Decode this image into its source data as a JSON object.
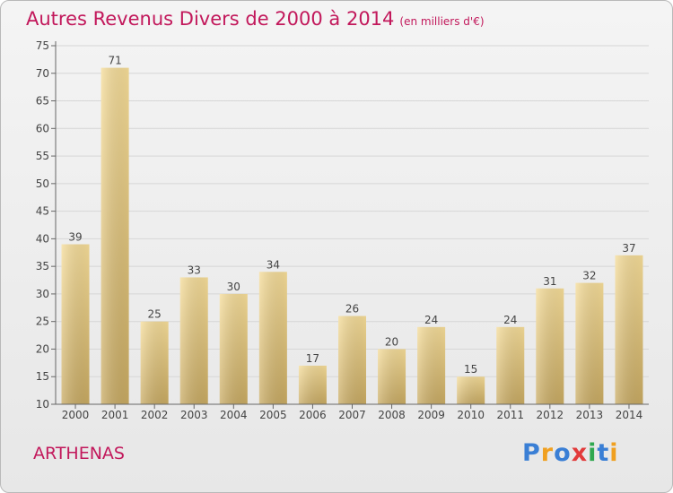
{
  "title": "Autres Revenus Divers de 2000 à 2014",
  "unit_note": "(en milliers d'€)",
  "place": "ARTHENAS",
  "logo_text": "Proxiti",
  "logo_colors": [
    "#3a7fd5",
    "#f0a020",
    "#3a7fd5",
    "#e23b3b",
    "#2fa84f",
    "#3a7fd5",
    "#f0a020"
  ],
  "colors": {
    "title": "#c2185b",
    "bar_light": "#f5dc98",
    "bar_dark": "#c8aa62",
    "grid": "#d6d6d6",
    "axis": "#666666",
    "text": "#444444"
  },
  "chart_data": {
    "type": "bar",
    "categories": [
      "2000",
      "2001",
      "2002",
      "2003",
      "2004",
      "2005",
      "2006",
      "2007",
      "2008",
      "2009",
      "2010",
      "2011",
      "2012",
      "2013",
      "2014"
    ],
    "values": [
      39,
      71,
      25,
      33,
      30,
      34,
      17,
      26,
      20,
      24,
      15,
      24,
      31,
      32,
      37
    ],
    "ylim": [
      10,
      75
    ],
    "yticks": [
      10,
      15,
      20,
      25,
      30,
      35,
      40,
      45,
      50,
      55,
      60,
      65,
      70,
      75
    ],
    "grid": true,
    "legend": "none"
  }
}
